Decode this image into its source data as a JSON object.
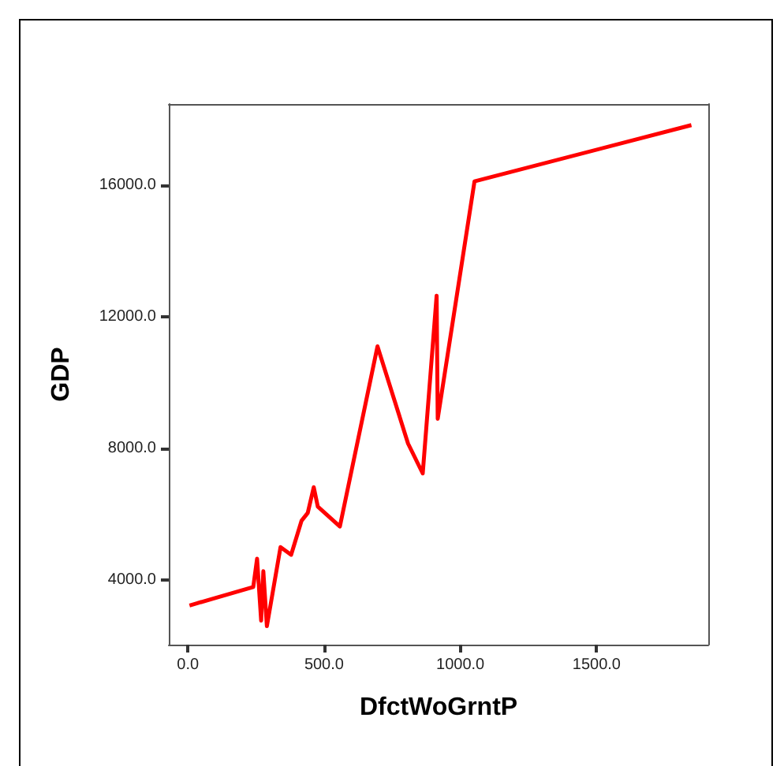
{
  "chart_data": {
    "type": "line",
    "xlabel": "DfctWoGrntP",
    "ylabel": "GDP",
    "x": [
      6,
      240,
      254,
      269,
      277,
      290,
      340,
      379,
      417,
      440,
      462,
      477,
      558,
      696,
      808,
      862,
      913,
      917,
      1052,
      1848
    ],
    "series": [
      {
        "color": "#ff0000",
        "values": [
          3230,
          3790,
          4650,
          2770,
          4270,
          2600,
          5000,
          4770,
          5800,
          6040,
          6820,
          6230,
          5630,
          11100,
          8150,
          7240,
          12640,
          8900,
          16110,
          17820
        ]
      }
    ],
    "xlim": [
      -70,
      1910
    ],
    "ylim": [
      2040,
      18460
    ],
    "xticks": [
      {
        "value": 0,
        "label": "0.0"
      },
      {
        "value": 500,
        "label": "500.0"
      },
      {
        "value": 1000,
        "label": "1000.0"
      },
      {
        "value": 1500,
        "label": "1500.0"
      }
    ],
    "yticks": [
      {
        "value": 4000,
        "label": "4000.0"
      },
      {
        "value": 8000,
        "label": "8000.0"
      },
      {
        "value": 12000,
        "label": "12000.0"
      },
      {
        "value": 16000,
        "label": "16000.0"
      }
    ],
    "marker": "none",
    "line_style": "solid"
  }
}
